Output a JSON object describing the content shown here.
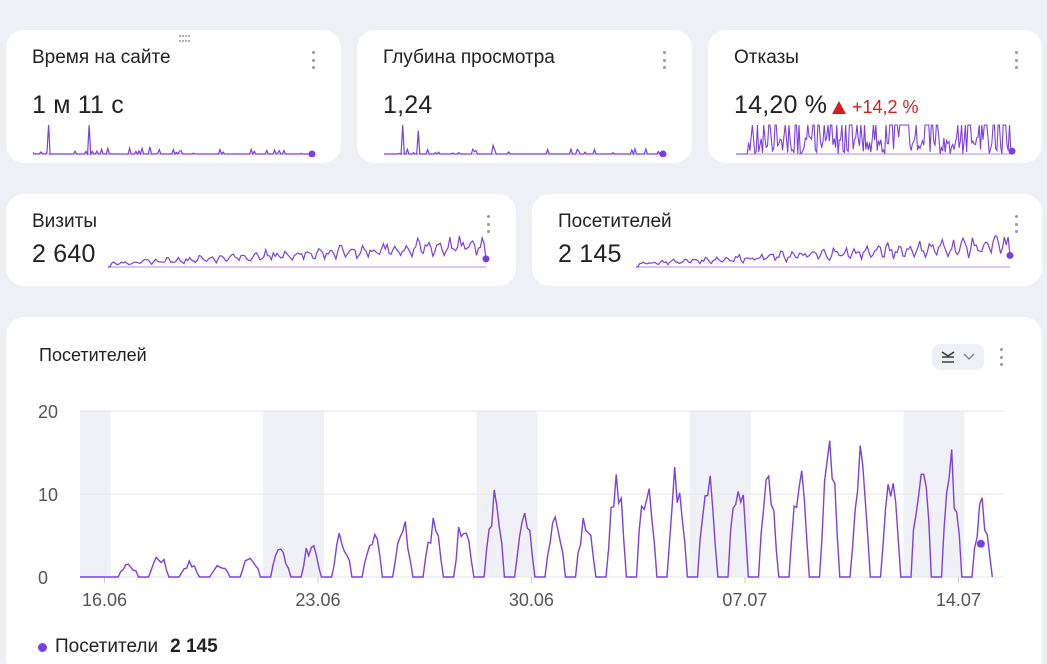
{
  "colors": {
    "accent": "#7b3fe4",
    "negative": "#d31e1e",
    "weekend": "#f0f1f6",
    "grid": "#e6e6ea"
  },
  "cards": {
    "time_on_site": {
      "title": "Время на сайте",
      "value": "1 м 11 с"
    },
    "depth": {
      "title": "Глубина просмотра",
      "value": "1,24"
    },
    "bounces": {
      "title": "Отказы",
      "value": "14,20 %",
      "delta": "+14,2 %",
      "delta_direction": "up"
    },
    "visits": {
      "title": "Визиты",
      "value": "2 640"
    },
    "visitors": {
      "title": "Посетителей",
      "value": "2 145"
    }
  },
  "main": {
    "title": "Посетителей",
    "view_toggle_icon": "chart-type-icon",
    "legend": {
      "label": "Посетители",
      "total": "2 145"
    }
  },
  "chart_data": {
    "type": "line",
    "title": "Посетителей",
    "x_tick_labels": [
      "16.06",
      "23.06",
      "30.06",
      "07.07",
      "14.07"
    ],
    "y_tick_labels": [
      "0",
      "10",
      "20"
    ],
    "ylim": [
      0,
      20
    ],
    "x_range": [
      "15.06",
      "14.07"
    ],
    "x_granularity": "hourly",
    "weekend_bands": [
      [
        "15.06",
        "15.06"
      ],
      [
        "21.06",
        "22.06"
      ],
      [
        "28.06",
        "29.06"
      ],
      [
        "05.07",
        "06.07"
      ],
      [
        "12.07",
        "13.07"
      ]
    ],
    "grid": true,
    "series": [
      {
        "name": "Посетители",
        "daily_peak": [
          0,
          2,
          3,
          2,
          2,
          3,
          4,
          5,
          6,
          7,
          8,
          8,
          9,
          11,
          8,
          8,
          9,
          14,
          15,
          15,
          15,
          16,
          14,
          15,
          17,
          16,
          15,
          18,
          16,
          11
        ],
        "last_value": 4
      }
    ]
  }
}
